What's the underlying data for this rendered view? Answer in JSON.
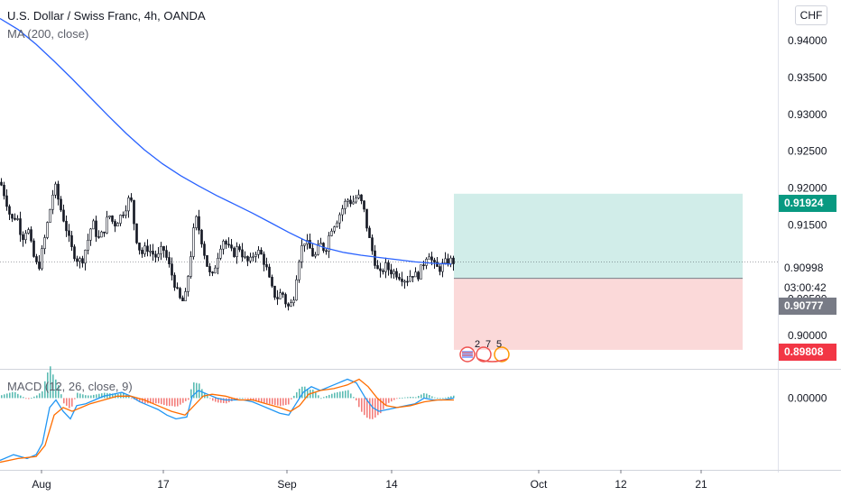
{
  "header": {
    "title": "U.S. Dollar / Swiss Franc, 4h, OANDA",
    "ma_label": "MA (200, close)",
    "macd_label": "MACD (12, 26, close, 9)",
    "currency_button": "CHF"
  },
  "price_tags": {
    "take_profit": "0.91924",
    "current": "0.90998",
    "countdown": "03:00:42",
    "entry": "0.90777",
    "stop_loss": "0.89808"
  },
  "event_counter": [
    "2",
    "7",
    "5"
  ],
  "colors": {
    "up": "#26a69a",
    "down": "#ef5350",
    "candle": "#131722",
    "ma": "#2962ff",
    "macd_line": "#2196f3",
    "signal_line": "#ff6d00",
    "tp_zone": "#d1ede9",
    "sl_zone": "#fbd9d9",
    "tag_tp": "#089981",
    "tag_entry": "#787b86",
    "tag_sl": "#f23645"
  },
  "chart_data": [
    {
      "type": "candlestick",
      "title": "U.S. Dollar / Swiss Franc, 4h, OANDA",
      "y_ticks": [
        0.9,
        0.905,
        0.91,
        0.915,
        0.92,
        0.925,
        0.93,
        0.935,
        0.94
      ],
      "y_tick_labels": [
        "0.90000",
        "0.90500",
        "0.91000",
        "0.91500",
        "0.92000",
        "0.92500",
        "0.93000",
        "0.93500",
        "0.94000"
      ],
      "ylim": [
        0.8955,
        0.9455
      ],
      "x_tick_labels": [
        "Aug",
        "17",
        "Sep",
        "14",
        "Oct",
        "12",
        "21"
      ],
      "close_path": [
        [
          0,
          0.9208
        ],
        [
          6,
          0.9185
        ],
        [
          12,
          0.9156
        ],
        [
          18,
          0.9163
        ],
        [
          24,
          0.9132
        ],
        [
          30,
          0.9148
        ],
        [
          36,
          0.911
        ],
        [
          42,
          0.909
        ],
        [
          48,
          0.9125
        ],
        [
          54,
          0.9165
        ],
        [
          60,
          0.9205
        ],
        [
          66,
          0.9175
        ],
        [
          72,
          0.915
        ],
        [
          78,
          0.912
        ],
        [
          84,
          0.9105
        ],
        [
          90,
          0.91
        ],
        [
          96,
          0.9125
        ],
        [
          102,
          0.9155
        ],
        [
          108,
          0.913
        ],
        [
          114,
          0.914
        ],
        [
          120,
          0.9165
        ],
        [
          126,
          0.915
        ],
        [
          132,
          0.916
        ],
        [
          138,
          0.9172
        ],
        [
          144,
          0.919
        ],
        [
          150,
          0.9135
        ],
        [
          156,
          0.911
        ],
        [
          162,
          0.912
        ],
        [
          168,
          0.9112
        ],
        [
          174,
          0.9105
        ],
        [
          180,
          0.912
        ],
        [
          186,
          0.9098
        ],
        [
          192,
          0.9075
        ],
        [
          198,
          0.905
        ],
        [
          204,
          0.9045
        ],
        [
          210,
          0.91
        ],
        [
          216,
          0.9162
        ],
        [
          222,
          0.9135
        ],
        [
          228,
          0.91
        ],
        [
          234,
          0.9075
        ],
        [
          240,
          0.9105
        ],
        [
          246,
          0.9132
        ],
        [
          252,
          0.912
        ],
        [
          258,
          0.911
        ],
        [
          264,
          0.9122
        ],
        [
          270,
          0.9105
        ],
        [
          276,
          0.9098
        ],
        [
          282,
          0.9115
        ],
        [
          288,
          0.9112
        ],
        [
          294,
          0.9095
        ],
        [
          300,
          0.9065
        ],
        [
          306,
          0.905
        ],
        [
          312,
          0.906
        ],
        [
          318,
          0.9038
        ],
        [
          324,
          0.9045
        ],
        [
          330,
          0.91
        ],
        [
          336,
          0.913
        ],
        [
          342,
          0.912
        ],
        [
          348,
          0.9105
        ],
        [
          354,
          0.9125
        ],
        [
          360,
          0.9115
        ],
        [
          366,
          0.9145
        ],
        [
          372,
          0.9155
        ],
        [
          378,
          0.917
        ],
        [
          384,
          0.9185
        ],
        [
          390,
          0.918
        ],
        [
          396,
          0.919
        ],
        [
          402,
          0.9175
        ],
        [
          408,
          0.9135
        ],
        [
          414,
          0.9105
        ],
        [
          420,
          0.908
        ],
        [
          426,
          0.9095
        ],
        [
          432,
          0.9088
        ],
        [
          438,
          0.9085
        ],
        [
          444,
          0.908
        ],
        [
          450,
          0.9075
        ],
        [
          456,
          0.9085
        ],
        [
          462,
          0.908
        ],
        [
          468,
          0.9095
        ],
        [
          474,
          0.9115
        ],
        [
          480,
          0.9095
        ],
        [
          486,
          0.909
        ],
        [
          492,
          0.9098
        ],
        [
          498,
          0.9102
        ],
        [
          503,
          0.91
        ]
      ],
      "ma_200": [
        [
          0,
          0.943
        ],
        [
          20,
          0.9415
        ],
        [
          40,
          0.9395
        ],
        [
          60,
          0.9372
        ],
        [
          80,
          0.9348
        ],
        [
          100,
          0.9323
        ],
        [
          120,
          0.9298
        ],
        [
          140,
          0.9274
        ],
        [
          160,
          0.9252
        ],
        [
          180,
          0.9233
        ],
        [
          200,
          0.9217
        ],
        [
          220,
          0.9203
        ],
        [
          240,
          0.919
        ],
        [
          260,
          0.9178
        ],
        [
          280,
          0.9166
        ],
        [
          300,
          0.9153
        ],
        [
          320,
          0.914
        ],
        [
          340,
          0.9128
        ],
        [
          360,
          0.9119
        ],
        [
          380,
          0.9113
        ],
        [
          400,
          0.9109
        ],
        [
          420,
          0.9106
        ],
        [
          440,
          0.9103
        ],
        [
          460,
          0.91
        ],
        [
          480,
          0.9098
        ],
        [
          500,
          0.9097
        ]
      ],
      "position": {
        "entry": 0.90777,
        "take_profit": 0.91924,
        "stop_loss": 0.89808,
        "current": 0.90998,
        "x_start": 503,
        "x_end": 823
      }
    },
    {
      "type": "line",
      "title": "MACD (12, 26, close, 9)",
      "y_tick_labels": [
        "0.00000"
      ],
      "ylim": [
        -0.0038,
        0.0015
      ],
      "series": [
        {
          "values": [
            [
              0,
              -0.0033
            ],
            [
              15,
              -0.003
            ],
            [
              30,
              -0.0032
            ],
            [
              40,
              -0.003
            ],
            [
              47,
              -0.0024
            ],
            [
              55,
              -0.0005
            ],
            [
              62,
              -0.0001
            ],
            [
              70,
              -0.0007
            ],
            [
              78,
              -0.0011
            ],
            [
              85,
              -0.0004
            ],
            [
              95,
              -0.0003
            ],
            [
              105,
              -0.0001
            ],
            [
              115,
              0.0001
            ],
            [
              125,
              0.0002
            ],
            [
              135,
              0.0003
            ],
            [
              145,
              0.0001
            ],
            [
              155,
              -0.0002
            ],
            [
              165,
              -0.0004
            ],
            [
              175,
              -0.0006
            ],
            [
              185,
              -0.0009
            ],
            [
              195,
              -0.0011
            ],
            [
              207,
              -0.001
            ],
            [
              213,
              0.0001
            ],
            [
              220,
              0.0004
            ],
            [
              230,
              0.0002
            ],
            [
              240,
              0.0
            ],
            [
              250,
              -0.0001
            ],
            [
              260,
              -0.0001
            ],
            [
              270,
              -0.0001
            ],
            [
              280,
              -0.0002
            ],
            [
              290,
              -0.0004
            ],
            [
              300,
              -0.0006
            ],
            [
              310,
              -0.0008
            ],
            [
              320,
              -0.0009
            ],
            [
              328,
              -0.0003
            ],
            [
              336,
              0.0003
            ],
            [
              345,
              0.0006
            ],
            [
              355,
              0.0004
            ],
            [
              365,
              0.0006
            ],
            [
              375,
              0.0008
            ],
            [
              385,
              0.001
            ],
            [
              395,
              0.0008
            ],
            [
              405,
              0.0
            ],
            [
              413,
              -0.0005
            ],
            [
              420,
              -0.0007
            ],
            [
              430,
              -0.0006
            ],
            [
              440,
              -0.0005
            ],
            [
              450,
              -0.0004
            ],
            [
              460,
              -0.0003
            ],
            [
              470,
              0.0
            ],
            [
              480,
              -0.0001
            ],
            [
              490,
              -0.0001
            ],
            [
              503,
              0.0
            ]
          ]
        },
        {
          "values": [
            [
              0,
              -0.0034
            ],
            [
              20,
              -0.0032
            ],
            [
              40,
              -0.0031
            ],
            [
              50,
              -0.0025
            ],
            [
              60,
              -0.0009
            ],
            [
              70,
              -0.0005
            ],
            [
              80,
              -0.0007
            ],
            [
              90,
              -0.0005
            ],
            [
              100,
              -0.0003
            ],
            [
              115,
              -0.0001
            ],
            [
              130,
              0.0001
            ],
            [
              145,
              0.0001
            ],
            [
              160,
              -0.0001
            ],
            [
              175,
              -0.0004
            ],
            [
              190,
              -0.0007
            ],
            [
              205,
              -0.0009
            ],
            [
              215,
              -0.0004
            ],
            [
              225,
              0.0001
            ],
            [
              235,
              0.0002
            ],
            [
              250,
              0.0001
            ],
            [
              265,
              -0.0001
            ],
            [
              280,
              -0.0001
            ],
            [
              295,
              -0.0003
            ],
            [
              310,
              -0.0005
            ],
            [
              322,
              -0.0007
            ],
            [
              332,
              -0.0004
            ],
            [
              342,
              0.0002
            ],
            [
              355,
              0.0004
            ],
            [
              370,
              0.0005
            ],
            [
              385,
              0.0007
            ],
            [
              398,
              0.001
            ],
            [
              408,
              0.0006
            ],
            [
              418,
              0.0
            ],
            [
              428,
              -0.0004
            ],
            [
              440,
              -0.0005
            ],
            [
              455,
              -0.0004
            ],
            [
              470,
              -0.0002
            ],
            [
              485,
              -0.0001
            ],
            [
              503,
              -0.0001
            ]
          ]
        }
      ]
    }
  ]
}
